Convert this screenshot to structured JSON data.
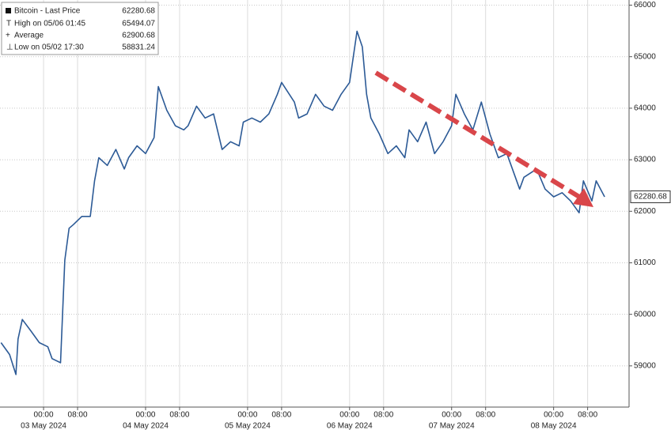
{
  "chart_data": {
    "type": "line",
    "legend": [
      {
        "label": "Bitcoin - Last Price",
        "value": 62280.68
      },
      {
        "label": "High on 05/06 01:45",
        "value": 65494.07
      },
      {
        "label": "Average",
        "value": 62900.68
      },
      {
        "label": "Low on 05/02 17:30",
        "value": 58831.24
      }
    ],
    "x": [
      "05/02 14:00",
      "05/02 16:00",
      "05/02 17:30",
      "05/02 18:00",
      "05/02 19:00",
      "05/02 21:00",
      "05/02 23:00",
      "05/03 01:00",
      "05/03 02:00",
      "05/03 04:00",
      "05/03 05:00",
      "05/03 06:00",
      "05/03 07:00",
      "05/03 09:00",
      "05/03 11:00",
      "05/03 12:00",
      "05/03 13:00",
      "05/03 15:00",
      "05/03 17:00",
      "05/03 19:00",
      "05/03 20:00",
      "05/03 22:00",
      "05/04 00:00",
      "05/04 02:00",
      "05/04 03:00",
      "05/04 05:00",
      "05/04 07:00",
      "05/04 09:00",
      "05/04 10:00",
      "05/04 12:00",
      "05/04 14:00",
      "05/04 16:00",
      "05/04 18:00",
      "05/04 20:00",
      "05/04 22:00",
      "05/04 23:00",
      "05/05 01:00",
      "05/05 03:00",
      "05/05 05:00",
      "05/05 07:00",
      "05/05 08:00",
      "05/05 11:00",
      "05/05 12:00",
      "05/05 14:00",
      "05/05 16:00",
      "05/05 18:00",
      "05/05 20:00",
      "05/05 22:00",
      "05/06 00:00",
      "05/06 01:45",
      "05/06 03:00",
      "05/06 04:00",
      "05/06 05:00",
      "05/06 07:00",
      "05/06 09:00",
      "05/06 11:00",
      "05/06 13:00",
      "05/06 14:00",
      "05/06 16:00",
      "05/06 18:00",
      "05/06 20:00",
      "05/06 22:00",
      "05/07 00:00",
      "05/07 01:00",
      "05/07 03:00",
      "05/07 05:00",
      "05/07 07:00",
      "05/07 09:00",
      "05/07 11:00",
      "05/07 13:00",
      "05/07 16:00",
      "05/07 17:00",
      "05/07 20:00",
      "05/07 22:00",
      "05/08 00:00",
      "05/08 02:00",
      "05/08 04:00",
      "05/08 06:00",
      "05/08 07:00",
      "05/08 09:00",
      "05/08 10:00",
      "05/08 12:00"
    ],
    "series": [
      {
        "name": "Bitcoin",
        "color": "#2c5a96",
        "values": [
          59450,
          59220,
          58831.24,
          59520,
          59900,
          59680,
          59450,
          59370,
          59140,
          59060,
          61050,
          61670,
          61740,
          61900,
          61900,
          62590,
          63040,
          62890,
          63200,
          62820,
          63040,
          63270,
          63120,
          63430,
          64420,
          63960,
          63660,
          63580,
          63660,
          64040,
          63810,
          63890,
          63200,
          63350,
          63270,
          63730,
          63810,
          63730,
          63890,
          64270,
          64500,
          64120,
          63810,
          63890,
          64270,
          64040,
          63960,
          64270,
          64500,
          65494.07,
          65190,
          64270,
          63810,
          63500,
          63120,
          63270,
          63040,
          63580,
          63350,
          63730,
          63120,
          63350,
          63660,
          64270,
          63890,
          63580,
          64120,
          63500,
          63040,
          63120,
          62430,
          62660,
          62820,
          62430,
          62280,
          62360,
          62200,
          61970,
          62590,
          62200,
          62590,
          62280.68
        ]
      }
    ],
    "xlim": [
      "05/02 13:45",
      "05/08 17:45"
    ],
    "xticks": [
      {
        "value": "05/03 00:00",
        "label": "00:00"
      },
      {
        "value": "05/03 08:00",
        "label": "08:00"
      },
      {
        "value": "05/04 00:00",
        "label": "00:00"
      },
      {
        "value": "05/04 08:00",
        "label": "08:00"
      },
      {
        "value": "05/05 00:00",
        "label": "00:00"
      },
      {
        "value": "05/05 08:00",
        "label": "08:00"
      },
      {
        "value": "05/06 00:00",
        "label": "00:00"
      },
      {
        "value": "05/06 08:00",
        "label": "08:00"
      },
      {
        "value": "05/07 00:00",
        "label": "00:00"
      },
      {
        "value": "05/07 08:00",
        "label": "08:00"
      },
      {
        "value": "05/08 00:00",
        "label": "00:00"
      },
      {
        "value": "05/08 08:00",
        "label": "08:00"
      }
    ],
    "x_date_labels": [
      {
        "value": "05/03 00:00",
        "label": "03 May 2024"
      },
      {
        "value": "05/04 00:00",
        "label": "04 May 2024"
      },
      {
        "value": "05/05 00:00",
        "label": "05 May 2024"
      },
      {
        "value": "05/06 00:00",
        "label": "06 May 2024"
      },
      {
        "value": "05/07 00:00",
        "label": "07 May 2024"
      },
      {
        "value": "05/08 00:00",
        "label": "08 May 2024"
      }
    ],
    "ylim": [
      58200,
      66100
    ],
    "yticks": [
      59000,
      60000,
      61000,
      62000,
      63000,
      64000,
      65000,
      66000
    ],
    "grid": true
  }
}
